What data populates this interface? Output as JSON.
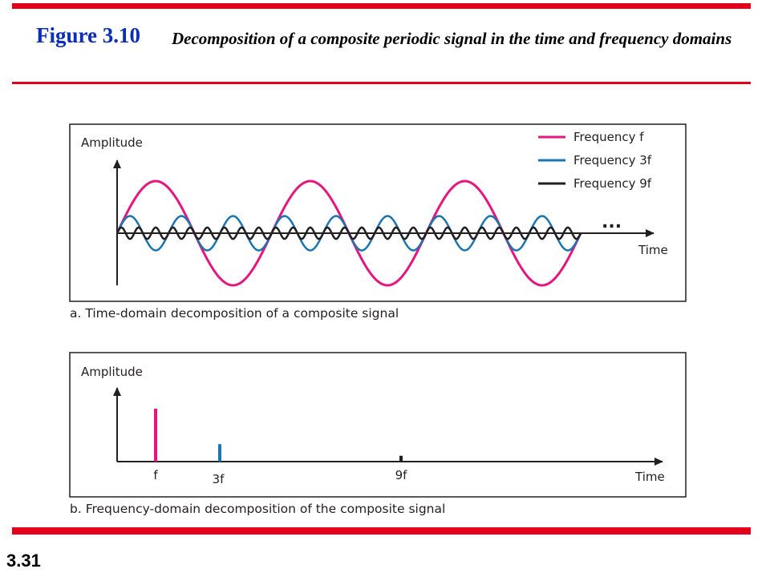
{
  "slide": {
    "figure_label": "Figure 3.10",
    "figure_title": "Decomposition of a composite periodic signal in the time and frequency domains",
    "slide_number": "3.31"
  },
  "colors": {
    "accent_red": "#e2001a",
    "title_blue": "#0a2eb8",
    "f": "#e5177e",
    "f3": "#1a75b0",
    "f9": "#231f20"
  },
  "chart_data": [
    {
      "type": "line",
      "panel": "a",
      "caption": "a. Time-domain decomposition of a composite signal",
      "ylabel": "Amplitude",
      "xlabel": "Time",
      "continuation": "...",
      "legend_position": "top-right",
      "grid": false,
      "cycles_of_f_shown": 3,
      "series": [
        {
          "name": "Frequency f",
          "relative_frequency": 1,
          "relative_amplitude": 1.0,
          "color": "#e5177e"
        },
        {
          "name": "Frequency 3f",
          "relative_frequency": 3,
          "relative_amplitude": 0.33,
          "color": "#1a75b0"
        },
        {
          "name": "Frequency 9f",
          "relative_frequency": 9,
          "relative_amplitude": 0.11,
          "color": "#231f20"
        }
      ]
    },
    {
      "type": "bar",
      "panel": "b",
      "caption": "b. Frequency-domain decomposition of the composite signal",
      "ylabel": "Amplitude",
      "xlabel": "Time",
      "grid": false,
      "categories": [
        "f",
        "3f",
        "9f"
      ],
      "values": [
        1.0,
        0.33,
        0.11
      ],
      "colors": [
        "#e5177e",
        "#1a75b0",
        "#231f20"
      ]
    }
  ]
}
